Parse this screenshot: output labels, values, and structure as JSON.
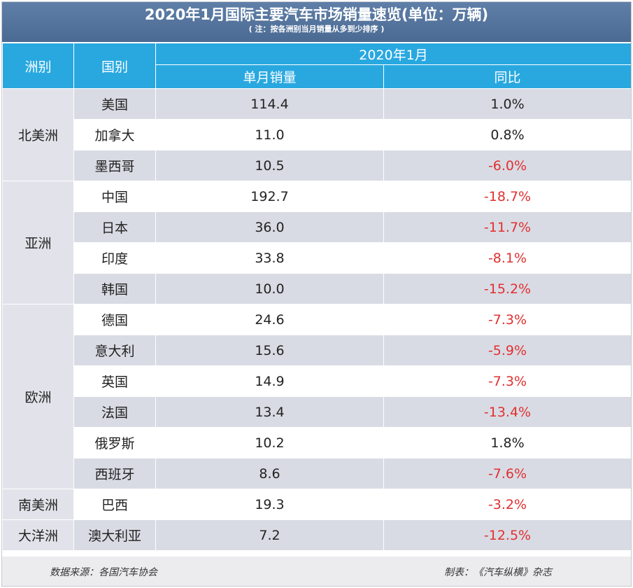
{
  "title": "2020年1月国际主要汽车市场销量速览(单位：万辆)",
  "note": "( 注：按各洲别当月销量从多到少排序 )",
  "headers": {
    "continent": "洲别",
    "country": "国别",
    "period": "2020年1月",
    "sales": "单月销量",
    "yoy": "同比"
  },
  "groups": [
    {
      "continent": "北美洲",
      "rows": [
        {
          "country": "美国",
          "sales": "114.4",
          "yoy": "1.0%"
        },
        {
          "country": "加拿大",
          "sales": "11.0",
          "yoy": "0.8%"
        },
        {
          "country": "墨西哥",
          "sales": "10.5",
          "yoy": "-6.0%"
        }
      ]
    },
    {
      "continent": "亚洲",
      "rows": [
        {
          "country": "中国",
          "sales": "192.7",
          "yoy": "-18.7%"
        },
        {
          "country": "日本",
          "sales": "36.0",
          "yoy": "-11.7%"
        },
        {
          "country": "印度",
          "sales": "33.8",
          "yoy": "-8.1%"
        },
        {
          "country": "韩国",
          "sales": "10.0",
          "yoy": "-15.2%"
        }
      ]
    },
    {
      "continent": "欧洲",
      "rows": [
        {
          "country": "德国",
          "sales": "24.6",
          "yoy": "-7.3%"
        },
        {
          "country": "意大利",
          "sales": "15.6",
          "yoy": "-5.9%"
        },
        {
          "country": "英国",
          "sales": "14.9",
          "yoy": "-7.3%"
        },
        {
          "country": "法国",
          "sales": "13.4",
          "yoy": "-13.4%"
        },
        {
          "country": "俄罗斯",
          "sales": "10.2",
          "yoy": "1.8%"
        },
        {
          "country": "西班牙",
          "sales": "8.6",
          "yoy": "-7.6%"
        }
      ]
    },
    {
      "continent": "南美洲",
      "rows": [
        {
          "country": "巴西",
          "sales": "19.3",
          "yoy": "-3.2%"
        }
      ]
    },
    {
      "continent": "大洋洲",
      "rows": [
        {
          "country": "澳大利亚",
          "sales": "7.2",
          "yoy": "-12.5%"
        }
      ]
    }
  ],
  "footer": {
    "source": "数据来源：各国汽车协会",
    "maker": "制表：《汽车纵横》杂志"
  },
  "colors": {
    "title_band": "#5f7fa8",
    "header": "#29a8e0",
    "negative": "#e03030",
    "row_shade": "#d9dbe4"
  }
}
